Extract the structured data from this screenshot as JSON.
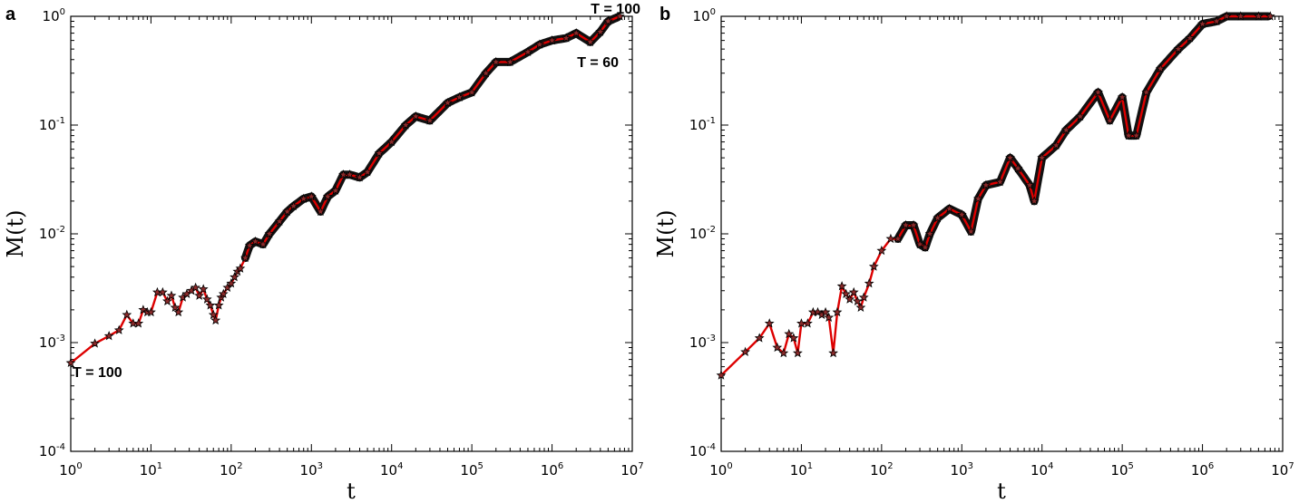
{
  "chart_data": [
    {
      "panel_label": "a",
      "type": "line",
      "xlabel": "t",
      "ylabel": "M(t)",
      "xscale": "log",
      "yscale": "log",
      "xlim": [
        1,
        10000000
      ],
      "ylim": [
        0.0001,
        1
      ],
      "x_ticks": [
        "10^0",
        "10^1",
        "10^2",
        "10^3",
        "10^4",
        "10^5",
        "10^6",
        "10^7"
      ],
      "y_ticks": [
        "10^-4",
        "10^-3",
        "10^-2",
        "10^-1",
        "10^0"
      ],
      "series": [
        {
          "color": "#dd0000",
          "marker": "star",
          "x": [
            1,
            2,
            3,
            4,
            5,
            6,
            7,
            8,
            9,
            10,
            12,
            14,
            16,
            18,
            20,
            22,
            25,
            28,
            32,
            36,
            40,
            45,
            50,
            55,
            60,
            64,
            70,
            75,
            80,
            90,
            100,
            110,
            120,
            130,
            150,
            170,
            200,
            250,
            300,
            400,
            500,
            600,
            800,
            1000,
            1300,
            1600,
            2000,
            2500,
            3000,
            4000,
            5000,
            7000,
            10000,
            15000,
            20000,
            30000,
            50000,
            70000,
            100000,
            150000,
            200000,
            300000,
            500000,
            700000,
            1000000,
            1500000,
            2000000,
            3000000,
            4000000,
            5000000,
            7000000
          ],
          "y": [
            0.00065,
            0.00098,
            0.00115,
            0.0013,
            0.0018,
            0.0015,
            0.0015,
            0.002,
            0.0019,
            0.0019,
            0.0029,
            0.0029,
            0.0024,
            0.0027,
            0.0021,
            0.0019,
            0.0026,
            0.0028,
            0.003,
            0.0032,
            0.0027,
            0.0031,
            0.0025,
            0.0022,
            0.0018,
            0.0016,
            0.0022,
            0.0026,
            0.0028,
            0.0032,
            0.0035,
            0.004,
            0.0045,
            0.0048,
            0.006,
            0.0078,
            0.0085,
            0.008,
            0.01,
            0.013,
            0.016,
            0.018,
            0.021,
            0.022,
            0.016,
            0.022,
            0.025,
            0.035,
            0.035,
            0.033,
            0.037,
            0.055,
            0.07,
            0.1,
            0.12,
            0.11,
            0.16,
            0.18,
            0.2,
            0.3,
            0.38,
            0.38,
            0.47,
            0.55,
            0.6,
            0.63,
            0.7,
            0.58,
            0.72,
            0.9,
            1.0
          ]
        }
      ],
      "annotations": [
        {
          "text": "T = 100",
          "at": "top-right"
        },
        {
          "text": "T = 60",
          "at": "upper-right"
        },
        {
          "text": "T = 100",
          "at": "bottom-left"
        }
      ]
    },
    {
      "panel_label": "b",
      "type": "line",
      "xlabel": "t",
      "ylabel": "M(t)",
      "xscale": "log",
      "yscale": "log",
      "xlim": [
        1,
        10000000
      ],
      "ylim": [
        0.0001,
        1
      ],
      "x_ticks": [
        "10^0",
        "10^1",
        "10^2",
        "10^3",
        "10^4",
        "10^5",
        "10^6",
        "10^7"
      ],
      "y_ticks": [
        "10^-4",
        "10^-3",
        "10^-2",
        "10^-1",
        "10^0"
      ],
      "series": [
        {
          "color": "#dd0000",
          "marker": "star",
          "x": [
            1,
            2,
            3,
            4,
            5,
            6,
            7,
            8,
            9,
            10,
            12,
            14,
            16,
            18,
            20,
            22,
            25,
            28,
            32,
            36,
            40,
            45,
            50,
            55,
            60,
            70,
            80,
            100,
            130,
            160,
            200,
            250,
            300,
            350,
            400,
            500,
            700,
            1000,
            1300,
            1600,
            2000,
            3000,
            4000,
            5000,
            7000,
            8000,
            10000,
            15000,
            20000,
            30000,
            50000,
            70000,
            100000,
            120000,
            150000,
            200000,
            300000,
            500000,
            700000,
            1000000,
            1500000,
            2000000,
            3000000,
            5000000,
            7000000
          ],
          "y": [
            0.0005,
            0.00082,
            0.0011,
            0.0015,
            0.0009,
            0.0008,
            0.0012,
            0.0011,
            0.0008,
            0.0015,
            0.0015,
            0.0019,
            0.0019,
            0.0018,
            0.0019,
            0.0017,
            0.0008,
            0.0019,
            0.0033,
            0.0028,
            0.0025,
            0.0029,
            0.0024,
            0.0021,
            0.0026,
            0.0035,
            0.005,
            0.007,
            0.009,
            0.009,
            0.012,
            0.012,
            0.008,
            0.0075,
            0.01,
            0.014,
            0.017,
            0.015,
            0.0105,
            0.021,
            0.028,
            0.03,
            0.05,
            0.04,
            0.028,
            0.02,
            0.05,
            0.065,
            0.09,
            0.12,
            0.2,
            0.11,
            0.18,
            0.08,
            0.08,
            0.2,
            0.33,
            0.5,
            0.63,
            0.85,
            0.9,
            1.0,
            1.0,
            1.0,
            1.0
          ]
        }
      ],
      "annotations": []
    }
  ]
}
